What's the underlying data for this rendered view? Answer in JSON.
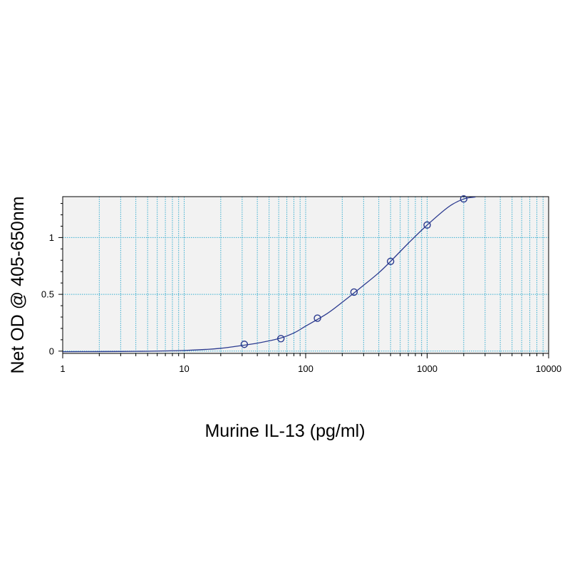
{
  "chart_data": {
    "type": "scatter",
    "title": "",
    "xlabel": "Murine IL-13 (pg/ml)",
    "ylabel": "Net OD @ 405-650nm",
    "x_scale": "log",
    "xlim": [
      1,
      10000
    ],
    "ylim": [
      -0.02,
      1.36
    ],
    "x_ticks": [
      1,
      10,
      100,
      1000,
      10000
    ],
    "x_tick_labels": [
      "1",
      "10",
      "100",
      "1000",
      "10000"
    ],
    "y_ticks": [
      0,
      0.5,
      1
    ],
    "y_tick_labels": [
      "0",
      "0.5",
      "1"
    ],
    "grid": true,
    "legend": "none",
    "series": [
      {
        "x": [
          31.25,
          62.5,
          125,
          250,
          500,
          1000,
          2000
        ],
        "y": [
          0.06,
          0.11,
          0.29,
          0.52,
          0.79,
          1.11,
          1.34
        ]
      }
    ],
    "fit_curve": {
      "x": [
        1,
        2,
        3,
        4,
        5,
        7,
        10,
        15,
        20,
        30,
        40,
        60,
        80,
        100,
        150,
        200,
        300,
        400,
        500,
        700,
        1000,
        1500,
        2000,
        2500
      ],
      "y": [
        -0.005,
        -0.004,
        -0.003,
        -0.002,
        -0.001,
        0.002,
        0.006,
        0.015,
        0.025,
        0.05,
        0.07,
        0.11,
        0.16,
        0.22,
        0.33,
        0.43,
        0.58,
        0.69,
        0.79,
        0.95,
        1.11,
        1.27,
        1.34,
        1.38
      ]
    },
    "colors": {
      "curve": "#2b3a8f",
      "marker": "#2b3a8f",
      "grid": "#3aaed0",
      "plot_bg": "#f2f2f2",
      "frame": "#000000"
    }
  }
}
